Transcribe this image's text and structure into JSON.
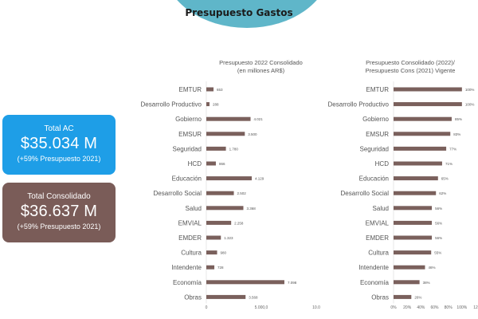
{
  "header": {
    "title": "Presupuesto Gastos"
  },
  "cards": [
    {
      "label": "Total AC",
      "value": "$35.034 M",
      "sub": "(+59% Presupuesto 2021)",
      "color": "#1e9ee7"
    },
    {
      "label": "Total Consolidado",
      "value": "$36.637 M",
      "sub": "(+59% Presupuesto 2021)",
      "color": "#7a5c58"
    }
  ],
  "colors": {
    "bar": "#7a605c",
    "header_circle": "#5fb6c9"
  },
  "chart_data": [
    {
      "type": "bar",
      "orientation": "horizontal",
      "title": "Presupuesto 2022 Consolidado\n(en millones AR$)",
      "categories": [
        "EMTUR",
        "Desarrollo Productivo",
        "Gobierno",
        "EMSUR",
        "Seguridad",
        "HCD",
        "Educación",
        "Desarrollo Social",
        "Salud",
        "EMVIAL",
        "EMDER",
        "Cultura",
        "Intendente",
        "Economía",
        "Obras"
      ],
      "values": [
        653,
        288,
        4021,
        3500,
        1780,
        866,
        4129,
        2502,
        3368,
        2258,
        1323,
        980,
        728,
        7098,
        3568
      ],
      "labels": [
        "653",
        "288",
        "4.021",
        "3.500",
        "1.780",
        "866",
        "4.129",
        "2.502",
        "3.368",
        "2.258",
        "1.323",
        "980",
        "728",
        "7.098",
        "3.568"
      ],
      "xlim": [
        0,
        10000
      ],
      "xticks": [
        "0",
        "5.000,0",
        "10.0"
      ]
    },
    {
      "type": "bar",
      "orientation": "horizontal",
      "title": "Presupuesto  Consolidado (2022)/\nPresupuesto Cons (2021) Vigente",
      "categories": [
        "EMTUR",
        "Desarrollo Productivo",
        "Gobierno",
        "EMSUR",
        "Seguridad",
        "HCD",
        "Educación",
        "Desarrollo Social",
        "Salud",
        "EMVIAL",
        "EMDER",
        "Cultura",
        "Intendente",
        "Economía",
        "Obras"
      ],
      "values": [
        100,
        100,
        85,
        83,
        77,
        71,
        65,
        62,
        56,
        56,
        56,
        55,
        46,
        38,
        26
      ],
      "labels": [
        "100%",
        "100%",
        "85%",
        "83%",
        "77%",
        "71%",
        "65%",
        "62%",
        "56%",
        "56%",
        "56%",
        "55%",
        "46%",
        "38%",
        "26%"
      ],
      "xlim": [
        0,
        120
      ],
      "xticks": [
        "0%",
        "20%",
        "40%",
        "60%",
        "80%",
        "100%",
        "12"
      ]
    }
  ]
}
